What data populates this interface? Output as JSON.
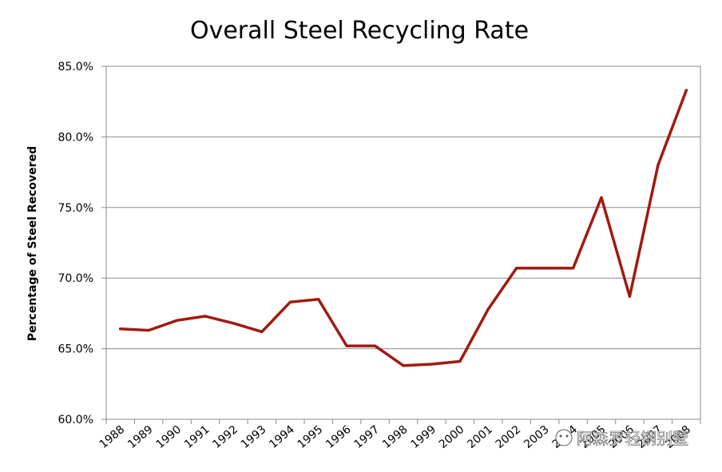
{
  "chart_data": {
    "type": "line",
    "title": "Overall Steel Recycling Rate",
    "xlabel": "",
    "ylabel": "Percentage of Steel Recovered",
    "ylim": [
      60.0,
      85.0
    ],
    "yticks": [
      "60.0%",
      "65.0%",
      "70.0%",
      "75.0%",
      "80.0%",
      "85.0%"
    ],
    "grid": true,
    "categories": [
      "1988",
      "1989",
      "1990",
      "1991",
      "1992",
      "1993",
      "1994",
      "1995",
      "1996",
      "1997",
      "1998",
      "1999",
      "2000",
      "2001",
      "2002",
      "2003",
      "2004",
      "2005",
      "2006",
      "2007",
      "2008"
    ],
    "series": [
      {
        "name": "Overall Steel Recycling Rate",
        "color": "#a01a10",
        "values": [
          66.4,
          66.3,
          67.0,
          67.3,
          66.8,
          66.2,
          68.3,
          68.5,
          65.2,
          65.2,
          63.8,
          63.9,
          64.1,
          67.8,
          70.7,
          70.7,
          70.7,
          75.7,
          68.7,
          78.0,
          83.3
        ]
      }
    ]
  },
  "watermark": "阿森罗轻钢别墅"
}
